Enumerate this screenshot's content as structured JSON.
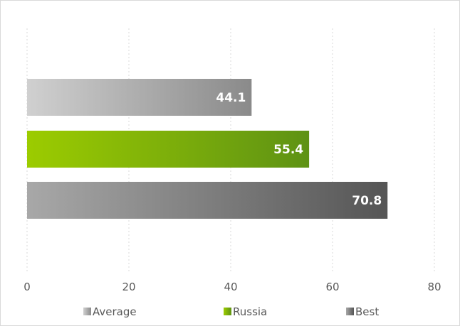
{
  "chart_data": {
    "type": "bar",
    "orientation": "horizontal",
    "categories": [
      "Average",
      "Russia",
      "Best"
    ],
    "values": [
      44.1,
      55.4,
      70.8
    ],
    "value_labels": [
      "44.1",
      "55.4",
      "70.8"
    ],
    "series": [
      {
        "name": "Average",
        "value": 44.1,
        "colors": [
          "#d0d0d0",
          "#8a8a8a"
        ]
      },
      {
        "name": "Russia",
        "value": 55.4,
        "colors": [
          "#9ccc00",
          "#5e9214"
        ]
      },
      {
        "name": "Best",
        "value": 70.8,
        "colors": [
          "#a8a8a8",
          "#555555"
        ]
      }
    ],
    "xlim": [
      0,
      80
    ],
    "x_ticks": [
      0,
      20,
      40,
      60,
      80
    ],
    "x_tick_labels": [
      "0",
      "20",
      "40",
      "60",
      "80"
    ],
    "grid": true,
    "legend_position": "bottom"
  }
}
